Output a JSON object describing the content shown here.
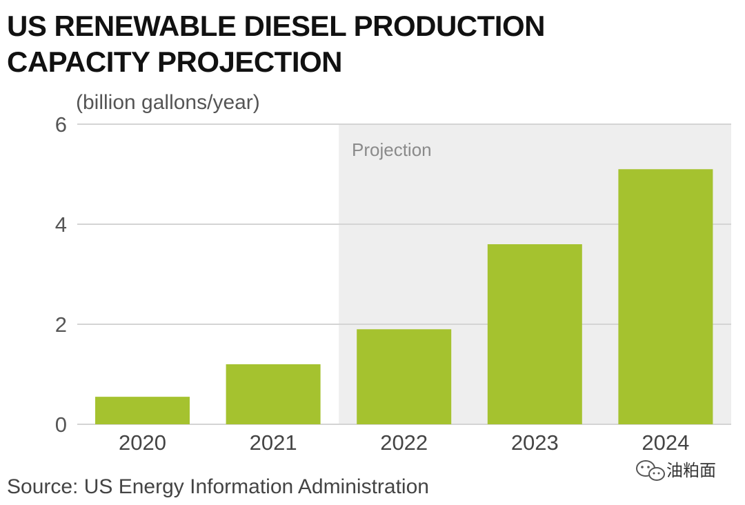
{
  "chart_data": {
    "type": "bar",
    "title_lines": [
      "US RENEWABLE DIESEL PRODUCTION",
      "CAPACITY PROJECTION"
    ],
    "unit_label": "(billion gallons/year)",
    "categories": [
      "2020",
      "2021",
      "2022",
      "2023",
      "2024"
    ],
    "values": [
      0.55,
      1.2,
      1.9,
      3.6,
      5.1
    ],
    "ylim": [
      0,
      6
    ],
    "yticks": [
      0,
      2,
      4,
      6
    ],
    "grid": true,
    "projection_label": "Projection",
    "projection_start_category": "2022",
    "source": "Source: US Energy Information Administration",
    "bar_color": "#a5c22f",
    "projection_bg_color": "#eeeeee"
  },
  "watermark": {
    "icon": "wechat-icon",
    "text": "油粕面"
  }
}
